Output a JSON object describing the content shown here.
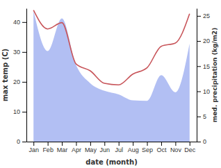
{
  "chart_data": {
    "type": "line",
    "xlabel": "date (month)",
    "ylabel": "max temp (C)",
    "y2label": "med. precipitation (kg/m2)",
    "categories": [
      "Jan",
      "Feb",
      "Mar",
      "Apr",
      "May",
      "Jun",
      "Jul",
      "Aug",
      "Sep",
      "Oct",
      "Nov",
      "Dec"
    ],
    "ylim": [
      0,
      44.6
    ],
    "yticks": [
      0,
      10,
      20,
      30,
      40
    ],
    "y2lim": [
      0,
      26.5
    ],
    "y2ticks": [
      0,
      5,
      10,
      15,
      20,
      25
    ],
    "series": [
      {
        "type": "line",
        "color": "#c8555a",
        "values": [
          44,
          37.7,
          39.8,
          26,
          23.7,
          19.5,
          19,
          22.6,
          24.7,
          31.9,
          33,
          42.8
        ]
      },
      {
        "type": "area",
        "axis": "y2",
        "color": "#b2bff3",
        "values": [
          26,
          18,
          24.5,
          15.2,
          11.6,
          10.1,
          9.4,
          8.2,
          8.1,
          13.2,
          9.8,
          19.5
        ]
      }
    ]
  }
}
